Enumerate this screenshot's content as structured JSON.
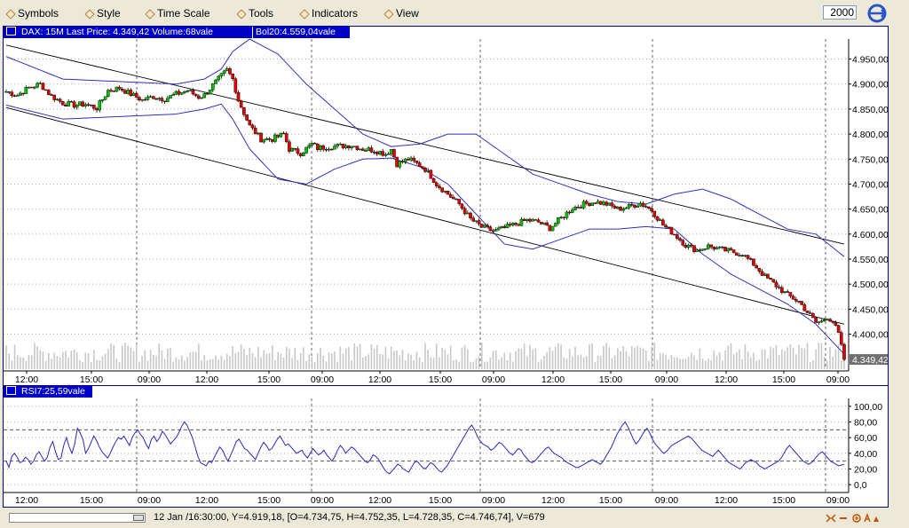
{
  "toolbar": {
    "menus": [
      "Symbols",
      "Style",
      "Time Scale",
      "Tools",
      "Indicators",
      "View"
    ],
    "interval_value": "2000"
  },
  "price_panel": {
    "header_main": "DAX: 15M Last Price: 4.349,42 Volume:68vale",
    "header_bol": "Bol20:4.559,04vale",
    "last_price_label": "4.349,42"
  },
  "rsi_panel": {
    "header": "RSI7:25,59vale"
  },
  "status_bar": {
    "text": "12 Jan /16:30:00, Y=4.919,18, [O=4.734,75, H=4.752,35, L=4.728,35, C=4.746,74], V=679"
  },
  "colors": {
    "up": "#00c000",
    "down": "#e00000",
    "band": "#3030c0",
    "header_bg": "#0000c8",
    "volume": "#c8c8c8"
  },
  "chart_data": [
    {
      "type": "candlestick",
      "instrument": "DAX",
      "interval": "15M",
      "ylim": [
        4330,
        4990
      ],
      "y_ticks": [
        4400,
        4450,
        4500,
        4550,
        4600,
        4650,
        4700,
        4750,
        4800,
        4850,
        4900,
        4950
      ],
      "y_tick_labels": [
        "4.400,00",
        "4.450,00",
        "4.500,00",
        "4.550,00",
        "4.600,00",
        "4.650,00",
        "4.700,00",
        "4.750,00",
        "4.800,00",
        "4.850,00",
        "4.900,00",
        "4.950,00"
      ],
      "x_tick_labels": [
        "12:00",
        "15:00",
        "09:00",
        "12:00",
        "15:00",
        "09:00",
        "12:00",
        "15:00",
        "09:00",
        "12:00",
        "15:00",
        "09:00",
        "12:00",
        "15:00",
        "09:00"
      ],
      "grid": true,
      "close_path": [
        [
          0,
          4885
        ],
        [
          4,
          4878
        ],
        [
          8,
          4893
        ],
        [
          12,
          4900
        ],
        [
          16,
          4876
        ],
        [
          20,
          4862
        ],
        [
          24,
          4858
        ],
        [
          28,
          4860
        ],
        [
          32,
          4852
        ],
        [
          36,
          4887
        ],
        [
          40,
          4892
        ],
        [
          44,
          4880
        ],
        [
          48,
          4868
        ],
        [
          52,
          4875
        ],
        [
          56,
          4870
        ],
        [
          60,
          4880
        ],
        [
          64,
          4887
        ],
        [
          68,
          4874
        ],
        [
          70,
          4878
        ],
        [
          74,
          4904
        ],
        [
          78,
          4928
        ],
        [
          80,
          4910
        ],
        [
          82,
          4868
        ],
        [
          86,
          4816
        ],
        [
          90,
          4790
        ],
        [
          94,
          4790
        ],
        [
          98,
          4800
        ],
        [
          100,
          4770
        ],
        [
          104,
          4762
        ],
        [
          108,
          4780
        ],
        [
          110,
          4772
        ],
        [
          114,
          4775
        ],
        [
          118,
          4776
        ],
        [
          122,
          4778
        ],
        [
          126,
          4770
        ],
        [
          130,
          4768
        ],
        [
          134,
          4760
        ],
        [
          136,
          4770
        ],
        [
          138,
          4740
        ],
        [
          142,
          4750
        ],
        [
          146,
          4738
        ],
        [
          148,
          4730
        ],
        [
          150,
          4716
        ],
        [
          152,
          4700
        ],
        [
          156,
          4680
        ],
        [
          160,
          4660
        ],
        [
          164,
          4630
        ],
        [
          168,
          4614
        ],
        [
          172,
          4606
        ],
        [
          176,
          4612
        ],
        [
          180,
          4620
        ],
        [
          184,
          4628
        ],
        [
          188,
          4624
        ],
        [
          192,
          4612
        ],
        [
          196,
          4632
        ],
        [
          200,
          4652
        ],
        [
          204,
          4660
        ],
        [
          208,
          4665
        ],
        [
          212,
          4660
        ],
        [
          216,
          4650
        ],
        [
          220,
          4655
        ],
        [
          224,
          4662
        ],
        [
          228,
          4648
        ],
        [
          232,
          4618
        ],
        [
          236,
          4600
        ],
        [
          240,
          4578
        ],
        [
          244,
          4568
        ],
        [
          248,
          4576
        ],
        [
          252,
          4570
        ],
        [
          256,
          4565
        ],
        [
          260,
          4560
        ],
        [
          264,
          4540
        ],
        [
          268,
          4515
        ],
        [
          272,
          4497
        ],
        [
          276,
          4478
        ],
        [
          280,
          4465
        ],
        [
          284,
          4437
        ],
        [
          286,
          4423
        ],
        [
          288,
          4425
        ],
        [
          290,
          4435
        ],
        [
          292,
          4425
        ],
        [
          294,
          4400
        ],
        [
          296,
          4349
        ]
      ],
      "n_candles": 297,
      "channel_upper": [
        [
          0,
          4978
        ],
        [
          296,
          4580
        ]
      ],
      "channel_lower": [
        [
          0,
          4853
        ],
        [
          296,
          4420
        ]
      ],
      "bollinger_upper": [
        [
          0,
          4955
        ],
        [
          20,
          4910
        ],
        [
          40,
          4905
        ],
        [
          60,
          4900
        ],
        [
          70,
          4910
        ],
        [
          76,
          4930
        ],
        [
          80,
          4965
        ],
        [
          86,
          4990
        ],
        [
          96,
          4960
        ],
        [
          106,
          4900
        ],
        [
          116,
          4850
        ],
        [
          126,
          4800
        ],
        [
          136,
          4775
        ],
        [
          146,
          4780
        ],
        [
          156,
          4800
        ],
        [
          166,
          4800
        ],
        [
          176,
          4760
        ],
        [
          186,
          4720
        ],
        [
          196,
          4700
        ],
        [
          206,
          4680
        ],
        [
          216,
          4665
        ],
        [
          226,
          4660
        ],
        [
          236,
          4680
        ],
        [
          246,
          4690
        ],
        [
          256,
          4670
        ],
        [
          266,
          4640
        ],
        [
          276,
          4610
        ],
        [
          286,
          4600
        ],
        [
          296,
          4555
        ]
      ],
      "bollinger_lower": [
        [
          0,
          4858
        ],
        [
          20,
          4830
        ],
        [
          40,
          4835
        ],
        [
          60,
          4840
        ],
        [
          70,
          4850
        ],
        [
          76,
          4860
        ],
        [
          80,
          4830
        ],
        [
          86,
          4770
        ],
        [
          96,
          4710
        ],
        [
          106,
          4700
        ],
        [
          116,
          4730
        ],
        [
          126,
          4750
        ],
        [
          136,
          4752
        ],
        [
          146,
          4735
        ],
        [
          156,
          4700
        ],
        [
          166,
          4640
        ],
        [
          176,
          4580
        ],
        [
          186,
          4570
        ],
        [
          196,
          4590
        ],
        [
          206,
          4610
        ],
        [
          216,
          4610
        ],
        [
          226,
          4615
        ],
        [
          236,
          4610
        ],
        [
          246,
          4560
        ],
        [
          256,
          4520
        ],
        [
          266,
          4490
        ],
        [
          276,
          4460
        ],
        [
          286,
          4420
        ],
        [
          296,
          4360
        ]
      ],
      "last_price": 4349.42
    },
    {
      "type": "line",
      "title": "RSI7",
      "last_value": 25.59,
      "ylim": [
        -10,
        110
      ],
      "y_ticks": [
        0,
        20,
        40,
        60,
        80,
        100
      ],
      "y_tick_labels": [
        "0,0",
        "20,00",
        "40,00",
        "60,00",
        "80,00",
        "100,00"
      ],
      "x_tick_labels": [
        "12:00",
        "15:00",
        "09:00",
        "12:00",
        "15:00",
        "09:00",
        "12:00",
        "15:00",
        "09:00",
        "12:00",
        "15:00",
        "09:00",
        "12:00",
        "15:00",
        "09:00"
      ],
      "dashed_levels": [
        70,
        30
      ],
      "values": [
        30,
        22,
        36,
        40,
        35,
        28,
        30,
        35,
        32,
        26,
        30,
        38,
        42,
        36,
        30,
        35,
        48,
        55,
        42,
        32,
        34,
        50,
        60,
        48,
        40,
        52,
        72,
        66,
        58,
        40,
        46,
        54,
        62,
        56,
        48,
        42,
        38,
        34,
        40,
        48,
        55,
        60,
        58,
        62,
        56,
        50,
        60,
        66,
        70,
        64,
        60,
        52,
        46,
        58,
        62,
        55,
        60,
        68,
        64,
        58,
        52,
        56,
        60,
        66,
        74,
        80,
        76,
        68,
        60,
        48,
        36,
        28,
        26,
        24,
        30,
        28,
        35,
        42,
        48,
        44,
        36,
        30,
        38,
        46,
        55,
        58,
        52,
        46,
        44,
        40,
        36,
        32,
        40,
        48,
        54,
        50,
        44,
        46,
        52,
        58,
        62,
        56,
        50,
        52,
        48,
        44,
        40,
        42,
        44,
        38,
        34,
        40,
        46,
        42,
        38,
        40,
        44,
        38,
        34,
        30,
        36,
        44,
        50,
        46,
        40,
        44,
        48,
        46,
        42,
        38,
        34,
        30,
        28,
        32,
        38,
        36,
        32,
        26,
        20,
        16,
        14,
        18,
        22,
        26,
        24,
        20,
        18,
        16,
        22,
        28,
        30,
        26,
        22,
        20,
        24,
        28,
        26,
        22,
        18,
        16,
        20,
        24,
        30,
        36,
        42,
        48,
        54,
        60,
        66,
        72,
        76,
        70,
        62,
        56,
        52,
        50,
        48,
        44,
        46,
        50,
        54,
        52,
        48,
        44,
        40,
        38,
        42,
        46,
        44,
        38,
        34,
        30,
        28,
        30,
        34,
        38,
        42,
        46,
        48,
        44,
        40,
        38,
        36,
        34,
        30,
        28,
        26,
        24,
        22,
        22,
        24,
        26,
        28,
        30,
        32,
        30,
        28,
        26,
        30,
        36,
        42,
        48,
        56,
        64,
        70,
        76,
        80,
        74,
        66,
        58,
        52,
        56,
        62,
        68,
        72,
        66,
        58,
        52,
        48,
        44,
        40,
        42,
        46,
        50,
        52,
        54,
        56,
        58,
        60,
        62,
        60,
        56,
        52,
        48,
        44,
        42,
        40,
        38,
        36,
        40,
        44,
        40,
        36,
        32,
        28,
        26,
        24,
        22,
        20,
        24,
        28,
        30,
        32,
        30,
        28,
        24,
        22,
        20,
        22,
        24,
        26,
        28,
        30,
        34,
        40,
        46,
        50,
        46,
        42,
        38,
        34,
        30,
        28,
        26,
        28,
        32,
        36,
        40,
        42,
        38,
        34,
        30,
        28,
        26,
        24,
        25,
        26
      ],
      "color": "#2828c0"
    }
  ]
}
